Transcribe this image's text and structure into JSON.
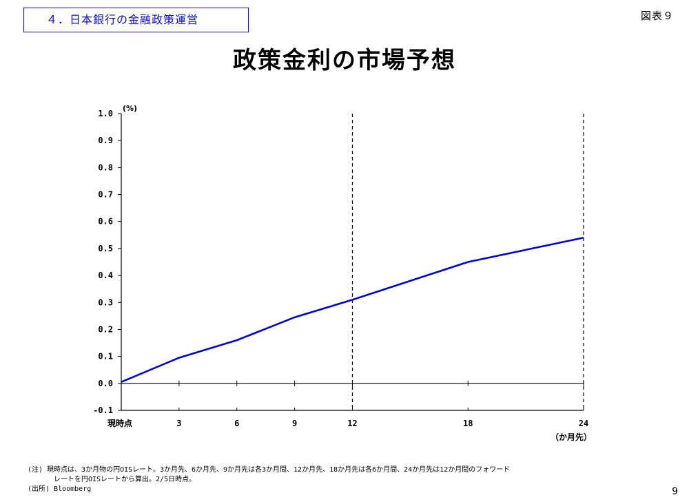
{
  "header": {
    "section_label": "４．日本銀行の金融政策運営",
    "figure_label": "図表９"
  },
  "chart_data": {
    "type": "line",
    "title": "政策金利の市場予想",
    "y_unit_label": "(%)",
    "x_unit_label": "（か月先）",
    "ylim": [
      -0.1,
      1.0
    ],
    "y_ticks": [
      -0.1,
      0.0,
      0.1,
      0.2,
      0.3,
      0.4,
      0.5,
      0.6,
      0.7,
      0.8,
      0.9,
      1.0
    ],
    "y_tick_labels": [
      "-0.1",
      "0.0",
      "0.1",
      "0.2",
      "0.3",
      "0.4",
      "0.5",
      "0.6",
      "0.7",
      "0.8",
      "0.9",
      "1.0"
    ],
    "xlim": [
      0,
      24
    ],
    "x_ticks": [
      0,
      3,
      6,
      9,
      12,
      18,
      24
    ],
    "x_tick_labels": [
      "現時点",
      "3",
      "6",
      "9",
      "12",
      "18",
      "24"
    ],
    "vertical_dashed_lines": [
      12,
      24
    ],
    "zero_line": 0.0,
    "series": [
      {
        "x": [
          0,
          3,
          6,
          9,
          12,
          18,
          24
        ],
        "values": [
          0.005,
          0.095,
          0.16,
          0.245,
          0.31,
          0.45,
          0.54
        ],
        "color": "#0000cc"
      }
    ],
    "grid": false
  },
  "notes": {
    "note_line1": "(注) 現時点は、3か月物の円OISレート。3か月先、6か月先、9か月先は各3か月間、12か月先、18か月先は各6か月間、24か月先は12か月間のフォワード",
    "note_line2": "レートを円OISレートから算出。2/5日時点。",
    "source": "(出所) Bloomberg"
  },
  "page_number": "9"
}
